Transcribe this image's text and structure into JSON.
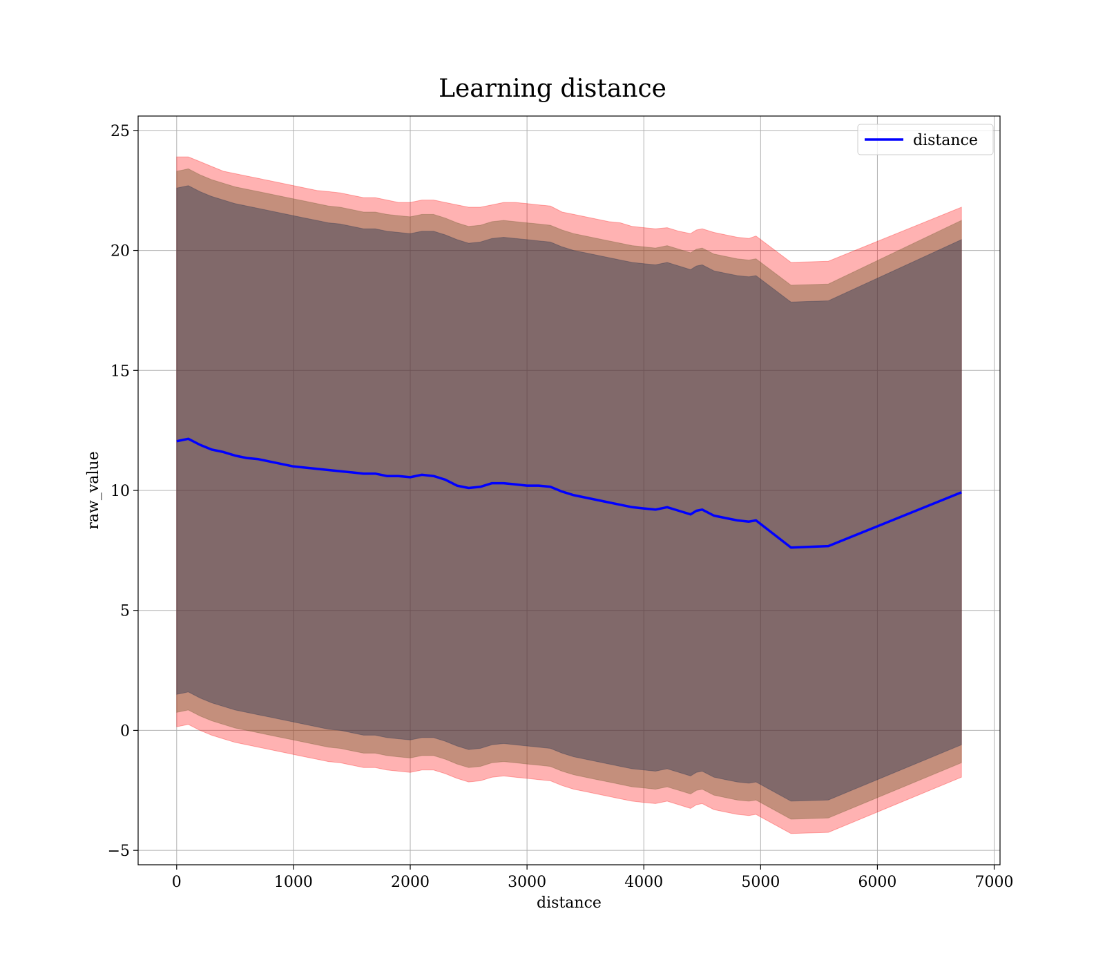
{
  "chart_data": {
    "type": "line",
    "title": "Learning distance",
    "xlabel": "distance",
    "ylabel": "raw_value",
    "xlim": [
      -330,
      7050
    ],
    "ylim": [
      -5.6,
      25.6
    ],
    "xticks": [
      0,
      1000,
      2000,
      3000,
      4000,
      5000,
      6000,
      7000
    ],
    "yticks": [
      -5,
      0,
      5,
      10,
      15,
      20,
      25
    ],
    "xtick_labels": [
      "0",
      "1000",
      "2000",
      "3000",
      "4000",
      "5000",
      "6000",
      "7000"
    ],
    "ytick_labels": [
      "−5",
      "0",
      "5",
      "10",
      "15",
      "20",
      "25"
    ],
    "grid": true,
    "legend_position": "top-right",
    "colors": {
      "line": "#0000ff",
      "band": "#ff0000",
      "band_inner": "#1f3050"
    },
    "series": [
      {
        "name": "distance",
        "x": [
          0,
          50,
          100,
          200,
          300,
          400,
          500,
          600,
          700,
          800,
          900,
          1000,
          1100,
          1200,
          1300,
          1400,
          1500,
          1600,
          1700,
          1800,
          1900,
          2000,
          2100,
          2200,
          2300,
          2400,
          2500,
          2600,
          2700,
          2800,
          2900,
          3000,
          3100,
          3200,
          3300,
          3400,
          3500,
          3600,
          3700,
          3800,
          3900,
          4000,
          4100,
          4200,
          4300,
          4400,
          4450,
          4500,
          4600,
          4700,
          4800,
          4900,
          4960,
          5260,
          5580,
          6720
        ],
        "y": [
          12.05,
          12.1,
          12.15,
          11.9,
          11.7,
          11.6,
          11.45,
          11.35,
          11.3,
          11.2,
          11.1,
          11.0,
          10.95,
          10.9,
          10.85,
          10.8,
          10.75,
          10.7,
          10.7,
          10.6,
          10.6,
          10.55,
          10.65,
          10.6,
          10.45,
          10.2,
          10.1,
          10.15,
          10.3,
          10.3,
          10.25,
          10.2,
          10.2,
          10.15,
          9.95,
          9.8,
          9.7,
          9.6,
          9.5,
          9.4,
          9.3,
          9.25,
          9.2,
          9.3,
          9.15,
          9.0,
          9.15,
          9.2,
          8.95,
          8.85,
          8.75,
          8.7,
          8.75,
          7.62,
          7.68,
          9.92
        ],
        "band_outer_upper": [
          23.9,
          23.9,
          23.9,
          23.7,
          23.5,
          23.3,
          23.2,
          23.1,
          23.0,
          22.9,
          22.8,
          22.7,
          22.6,
          22.5,
          22.45,
          22.4,
          22.3,
          22.2,
          22.2,
          22.1,
          22.0,
          22.0,
          22.1,
          22.1,
          22.0,
          21.9,
          21.8,
          21.8,
          21.9,
          22.0,
          22.0,
          21.95,
          21.9,
          21.85,
          21.6,
          21.5,
          21.4,
          21.3,
          21.2,
          21.15,
          21.0,
          20.95,
          20.9,
          20.95,
          20.8,
          20.7,
          20.85,
          20.9,
          20.75,
          20.65,
          20.55,
          20.5,
          20.6,
          19.5,
          19.55,
          21.8
        ],
        "band_mid_upper": [
          23.3,
          23.35,
          23.4,
          23.15,
          22.95,
          22.8,
          22.65,
          22.55,
          22.45,
          22.35,
          22.25,
          22.15,
          22.05,
          21.95,
          21.85,
          21.8,
          21.7,
          21.6,
          21.6,
          21.5,
          21.45,
          21.4,
          21.5,
          21.5,
          21.35,
          21.15,
          21.0,
          21.05,
          21.2,
          21.25,
          21.2,
          21.15,
          21.1,
          21.05,
          20.85,
          20.7,
          20.6,
          20.5,
          20.4,
          20.3,
          20.2,
          20.15,
          20.1,
          20.2,
          20.05,
          19.9,
          20.05,
          20.1,
          19.85,
          19.75,
          19.65,
          19.6,
          19.65,
          18.55,
          18.6,
          21.25
        ],
        "band_inner_upper": [
          22.6,
          22.65,
          22.7,
          22.45,
          22.25,
          22.1,
          21.95,
          21.85,
          21.75,
          21.65,
          21.55,
          21.45,
          21.35,
          21.25,
          21.15,
          21.1,
          21.0,
          20.9,
          20.9,
          20.8,
          20.75,
          20.7,
          20.8,
          20.8,
          20.65,
          20.45,
          20.3,
          20.35,
          20.5,
          20.55,
          20.5,
          20.45,
          20.4,
          20.35,
          20.15,
          20.0,
          19.9,
          19.8,
          19.7,
          19.6,
          19.5,
          19.45,
          19.4,
          19.5,
          19.35,
          19.2,
          19.35,
          19.4,
          19.15,
          19.05,
          18.95,
          18.9,
          18.95,
          17.85,
          17.9,
          20.45
        ],
        "band_inner_lower": [
          1.5,
          1.55,
          1.6,
          1.35,
          1.15,
          1.0,
          0.85,
          0.75,
          0.65,
          0.55,
          0.45,
          0.35,
          0.25,
          0.15,
          0.05,
          0.0,
          -0.1,
          -0.2,
          -0.2,
          -0.3,
          -0.35,
          -0.4,
          -0.3,
          -0.3,
          -0.45,
          -0.65,
          -0.8,
          -0.75,
          -0.6,
          -0.55,
          -0.6,
          -0.65,
          -0.7,
          -0.75,
          -0.95,
          -1.1,
          -1.2,
          -1.3,
          -1.4,
          -1.5,
          -1.6,
          -1.65,
          -1.7,
          -1.6,
          -1.75,
          -1.9,
          -1.75,
          -1.7,
          -1.95,
          -2.05,
          -2.15,
          -2.2,
          -2.15,
          -2.95,
          -2.9,
          -0.6
        ],
        "band_mid_lower": [
          0.75,
          0.8,
          0.85,
          0.6,
          0.4,
          0.25,
          0.1,
          0.0,
          -0.1,
          -0.2,
          -0.3,
          -0.4,
          -0.5,
          -0.6,
          -0.7,
          -0.75,
          -0.85,
          -0.95,
          -0.95,
          -1.05,
          -1.1,
          -1.15,
          -1.05,
          -1.05,
          -1.2,
          -1.4,
          -1.55,
          -1.5,
          -1.35,
          -1.3,
          -1.35,
          -1.4,
          -1.45,
          -1.5,
          -1.7,
          -1.85,
          -1.95,
          -2.05,
          -2.15,
          -2.25,
          -2.35,
          -2.4,
          -2.45,
          -2.35,
          -2.5,
          -2.65,
          -2.5,
          -2.45,
          -2.7,
          -2.8,
          -2.9,
          -2.95,
          -2.9,
          -3.7,
          -3.65,
          -1.35
        ],
        "band_outer_lower": [
          0.15,
          0.2,
          0.25,
          0.0,
          -0.2,
          -0.35,
          -0.5,
          -0.6,
          -0.7,
          -0.8,
          -0.9,
          -1.0,
          -1.1,
          -1.2,
          -1.3,
          -1.35,
          -1.45,
          -1.55,
          -1.55,
          -1.65,
          -1.7,
          -1.75,
          -1.65,
          -1.65,
          -1.8,
          -2.0,
          -2.15,
          -2.1,
          -1.95,
          -1.9,
          -1.95,
          -2.0,
          -2.05,
          -2.1,
          -2.3,
          -2.45,
          -2.55,
          -2.65,
          -2.75,
          -2.85,
          -2.95,
          -3.0,
          -3.05,
          -2.95,
          -3.1,
          -3.25,
          -3.1,
          -3.05,
          -3.3,
          -3.4,
          -3.5,
          -3.55,
          -3.5,
          -4.3,
          -4.25,
          -1.95
        ]
      }
    ]
  }
}
